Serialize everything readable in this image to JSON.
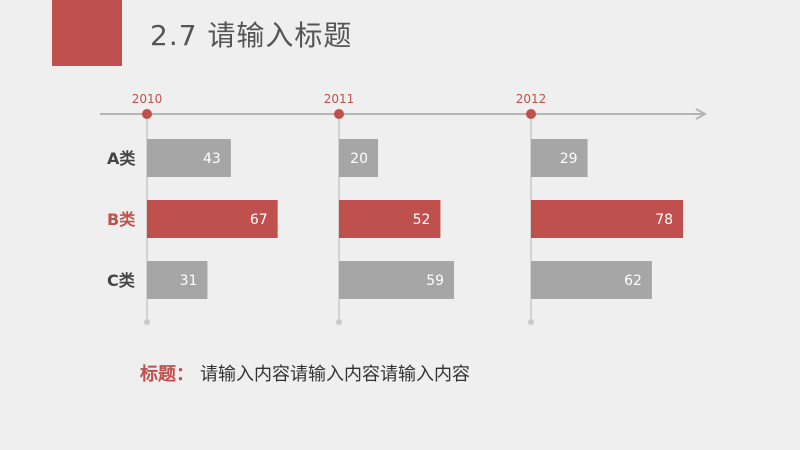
{
  "page": {
    "title": "2.7 请输入标题"
  },
  "caption": {
    "label": "标题：",
    "text": "请输入内容请输入内容请输入内容"
  },
  "colors": {
    "accent": "#c0504d",
    "bar_gray": "#a6a6a6",
    "timeline": "#b5b5b5",
    "title_text": "#555555"
  },
  "chart_data": {
    "type": "bar",
    "orientation": "horizontal",
    "title": "",
    "years": [
      "2010",
      "2011",
      "2012"
    ],
    "categories": [
      "A类",
      "B类",
      "C类"
    ],
    "highlight_category": "B类",
    "series": [
      {
        "name": "2010",
        "values": [
          43,
          67,
          31
        ]
      },
      {
        "name": "2011",
        "values": [
          20,
          52,
          59
        ]
      },
      {
        "name": "2012",
        "values": [
          29,
          78,
          62
        ]
      }
    ],
    "xlim": [
      0,
      100
    ]
  }
}
